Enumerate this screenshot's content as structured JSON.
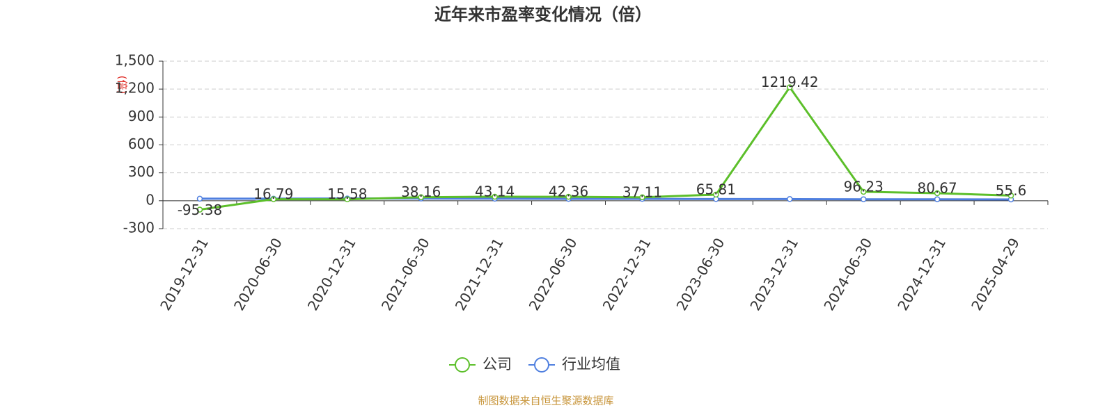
{
  "chart_data": {
    "type": "line",
    "title": "近年来市盈率变化情况（倍）",
    "y_label": "(倍)",
    "categories": [
      "2019-12-31",
      "2020-06-30",
      "2020-12-31",
      "2021-06-30",
      "2021-12-31",
      "2022-06-30",
      "2022-12-31",
      "2023-06-30",
      "2023-12-31",
      "2024-06-30",
      "2024-12-31",
      "2025-04-29"
    ],
    "series": [
      {
        "name": "公司",
        "color": "#5cbf2a",
        "values": [
          -95.38,
          16.79,
          15.58,
          38.16,
          43.14,
          42.36,
          37.11,
          65.81,
          1219.42,
          96.23,
          80.67,
          55.6
        ]
      },
      {
        "name": "行业均值",
        "color": "#4f7fdf",
        "values": [
          22,
          22,
          24,
          24,
          22,
          20,
          20,
          18,
          18,
          16,
          16,
          14
        ]
      }
    ],
    "ylim": [
      -300,
      1500
    ],
    "yticks": [
      -300,
      0,
      300,
      600,
      900,
      {
        "value": 1200,
        "label": "1,200"
      },
      {
        "value": 1500,
        "label": "1,500"
      }
    ],
    "grid": true,
    "legend": "bottom",
    "source": "制图数据来自恒生聚源数据库"
  }
}
